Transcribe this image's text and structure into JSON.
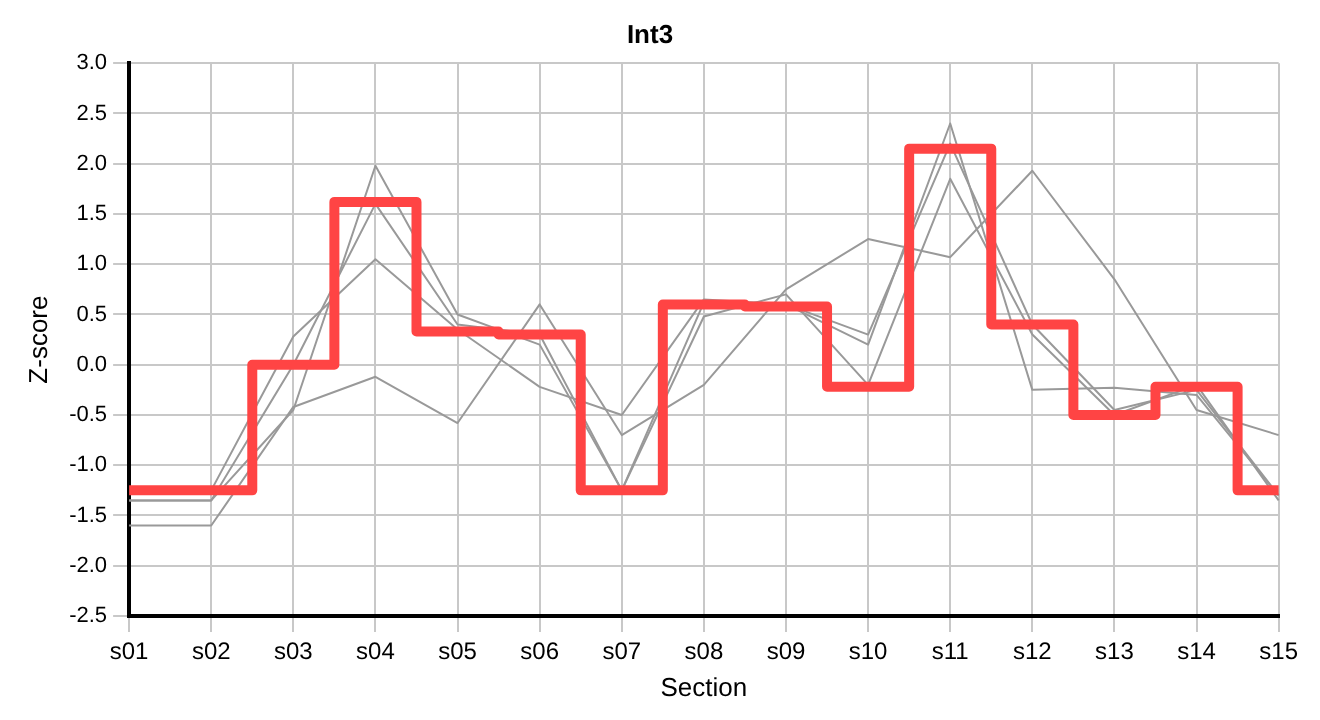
{
  "chart_data": {
    "type": "line",
    "title": "Int3",
    "xlabel": "Section",
    "ylabel": "Z-score",
    "categories": [
      "s01",
      "s02",
      "s03",
      "s04",
      "s05",
      "s06",
      "s07",
      "s08",
      "s09",
      "s10",
      "s11",
      "s12",
      "s13",
      "s14",
      "s15"
    ],
    "series": [
      {
        "color": "#999999",
        "values": [
          -1.35,
          -1.35,
          -0.45,
          1.98,
          0.5,
          0.2,
          -1.25,
          0.62,
          0.6,
          0.3,
          2.2,
          0.4,
          -0.45,
          -0.25,
          -1.3
        ]
      },
      {
        "color": "#999999",
        "values": [
          -1.6,
          -1.6,
          -0.42,
          -0.12,
          -0.58,
          0.6,
          -0.7,
          -0.2,
          0.75,
          1.25,
          1.07,
          1.93,
          0.85,
          -0.45,
          -0.7
        ]
      },
      {
        "color": "#999999",
        "values": [
          null,
          -1.25,
          0.28,
          1.05,
          0.35,
          -0.22,
          -0.5,
          0.65,
          0.6,
          0.2,
          2.4,
          -0.25,
          -0.23,
          -0.3,
          -1.3
        ]
      },
      {
        "color": "#999999",
        "values": [
          -1.35,
          -1.35,
          0,
          1.6,
          0.4,
          0.3,
          -1.25,
          0.48,
          0.7,
          -0.2,
          1.85,
          0.3,
          -0.5,
          -0.2,
          -1.35
        ]
      },
      {
        "type": "step",
        "color": "#ff4444",
        "values": [
          -1.25,
          -1.25,
          0,
          1.62,
          0.33,
          0.3,
          -1.25,
          0.6,
          0.58,
          -0.22,
          2.15,
          0.4,
          -0.5,
          -0.22,
          -1.25
        ]
      }
    ],
    "ylim": [
      -2.5,
      3
    ],
    "yticks": [
      {
        "value": -2.5,
        "label": "-2.5"
      },
      {
        "value": -2,
        "label": "-2.0"
      },
      {
        "value": -1.5,
        "label": "-1.5"
      },
      {
        "value": -1,
        "label": "-1.0"
      },
      {
        "value": -0.5,
        "label": "-0.5"
      },
      {
        "value": 0,
        "label": "0.0"
      },
      {
        "value": 0.5,
        "label": "0.5"
      },
      {
        "value": 1,
        "label": "1.0"
      },
      {
        "value": 1.5,
        "label": "1.5"
      },
      {
        "value": 2,
        "label": "2.0"
      },
      {
        "value": 2.5,
        "label": "2.5"
      },
      {
        "value": 3,
        "label": "3.0"
      }
    ],
    "grid": true,
    "legend": false,
    "marker": "none",
    "line_style": "solid"
  }
}
